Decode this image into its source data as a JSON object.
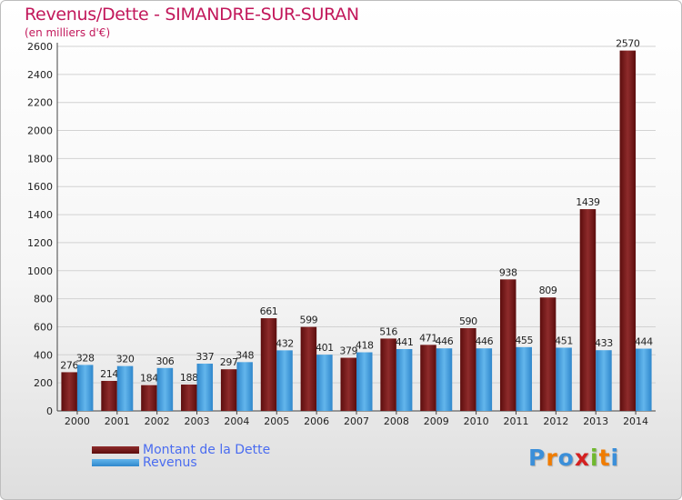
{
  "header": {
    "title": "Revenus/Dette - SIMANDRE-SUR-SURAN",
    "subtitle": "(en milliers d'€)"
  },
  "colors": {
    "debt": "#7a1c1c",
    "revenue": "#4aa3e0",
    "title": "#c2185b",
    "legend_text": "#4a6cf0"
  },
  "logo": {
    "text": "Proxiti",
    "letters": [
      "P",
      "r",
      "o",
      "x",
      "i",
      "t",
      "i"
    ],
    "colors": [
      "#3b8fd9",
      "#f07c00",
      "#3b8fd9",
      "#d42020",
      "#6fb82e",
      "#f07c00",
      "#3b8fd9"
    ]
  },
  "chart_data": {
    "type": "bar",
    "title": "Revenus/Dette - SIMANDRE-SUR-SURAN",
    "subtitle": "(en milliers d'€)",
    "categories": [
      "2000",
      "2001",
      "2002",
      "2003",
      "2004",
      "2005",
      "2006",
      "2007",
      "2008",
      "2009",
      "2010",
      "2011",
      "2012",
      "2013",
      "2014"
    ],
    "series": [
      {
        "name": "Montant de la Dette",
        "values": [
          276,
          214,
          184,
          188,
          297,
          661,
          599,
          379,
          516,
          471,
          590,
          938,
          809,
          1439,
          2570
        ],
        "labels": [
          "276",
          "214",
          "184",
          "188",
          "297",
          "661",
          "599",
          "379",
          "516",
          "471",
          "590",
          "938",
          "809",
          "1439",
          "2570"
        ]
      },
      {
        "name": "Revenus",
        "values": [
          328,
          320,
          306,
          337,
          348,
          432,
          401,
          418,
          441,
          446,
          446,
          455,
          451,
          433,
          444
        ],
        "labels": [
          "328",
          "320",
          "306",
          "337",
          "348",
          "432",
          "401",
          "418",
          "441",
          "446",
          "446",
          "455",
          "451",
          "433",
          "444"
        ]
      }
    ],
    "yticks": [
      "0",
      "200",
      "400",
      "600",
      "800",
      "1000",
      "1200",
      "1400",
      "1600",
      "1800",
      "2000",
      "2200",
      "2400",
      "2600"
    ],
    "ylim": [
      0,
      2600
    ],
    "grid": true,
    "legend": "bottom-left"
  }
}
